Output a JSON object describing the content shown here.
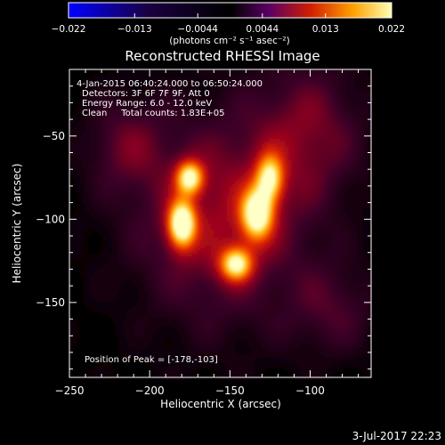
{
  "chart_data": {
    "type": "heatmap",
    "title": "Reconstructed RHESSI Image",
    "xlabel": "Heliocentric X (arcsec)",
    "ylabel": "Heliocentric Y (arcsec)",
    "xlim": [
      -250,
      -62
    ],
    "ylim": [
      -195,
      -10
    ],
    "xticks": [
      {
        "value": -250,
        "label": "−250"
      },
      {
        "value": -200,
        "label": "−200"
      },
      {
        "value": -150,
        "label": "−150"
      },
      {
        "value": -100,
        "label": "−100"
      }
    ],
    "yticks": [
      {
        "value": -50,
        "label": "−50"
      },
      {
        "value": -100,
        "label": "−100"
      },
      {
        "value": -150,
        "label": "−150"
      }
    ],
    "annotations": [
      "4-Jan-2015 06:40:24.000 to 06:50:24.000",
      "Detectors: 3F 6F 7F 9F, Att 0",
      "Energy Range: 6.0 - 12.0 keV",
      "Clean     Total counts: 1.83E+05"
    ],
    "peak_text": "Position of Peak = [-178,-103]",
    "peak": {
      "x": -178,
      "y": -103
    },
    "sources": [
      {
        "x": -180,
        "y": -103,
        "sx": 6,
        "sy": 10,
        "amp": 1.0
      },
      {
        "x": -175,
        "y": -75,
        "sx": 6,
        "sy": 7,
        "amp": 0.82
      },
      {
        "x": -133,
        "y": -97,
        "sx": 7,
        "sy": 11,
        "amp": 0.9
      },
      {
        "x": -125,
        "y": -75,
        "sx": 6,
        "sy": 10,
        "amp": 0.72
      },
      {
        "x": -146,
        "y": -127,
        "sx": 7,
        "sy": 7,
        "amp": 0.8
      }
    ],
    "colorbar": {
      "min": -0.022,
      "max": 0.022,
      "ticks": [
        {
          "value": -0.022,
          "label": "−0.022"
        },
        {
          "value": -0.013,
          "label": "−0.013"
        },
        {
          "value": -0.0044,
          "label": "−0.0044"
        },
        {
          "value": 0.0044,
          "label": "0.0044"
        },
        {
          "value": 0.013,
          "label": "0.013"
        },
        {
          "value": 0.022,
          "label": "0.022"
        }
      ],
      "label": "(photons cm⁻² s⁻¹ asec⁻²)"
    },
    "grid": false
  },
  "timestamp": "3-Jul-2017 22:23"
}
